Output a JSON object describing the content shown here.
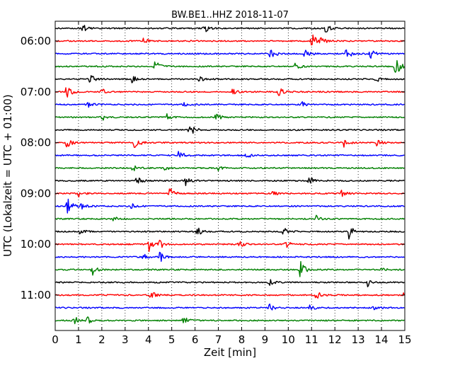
{
  "chart_data": {
    "type": "line",
    "title": "BW.BE1..HHZ 2018-11-07",
    "xlabel": "Zeit  [min]",
    "ylabel": "UTC (Lokalzeit = UTC + 01:00)",
    "xlim": [
      0,
      15
    ],
    "x_ticks": [
      "0",
      "1",
      "2",
      "3",
      "4",
      "5",
      "6",
      "7",
      "8",
      "9",
      "10",
      "11",
      "12",
      "13",
      "14",
      "15"
    ],
    "y_ticks": [
      "06:00",
      "07:00",
      "08:00",
      "09:00",
      "10:00",
      "11:00"
    ],
    "row_start": "05:45",
    "row_interval_min": 15,
    "grid": "vertical-dotted",
    "color_cycle": [
      "#000000",
      "#ff0000",
      "#0000ff",
      "#008000"
    ],
    "series": [
      {
        "time": "05:45",
        "color": "black",
        "events": [
          [
            1.2,
            0.5
          ],
          [
            6.4,
            0.6
          ],
          [
            11.6,
            0.6
          ]
        ]
      },
      {
        "time": "06:00",
        "color": "red",
        "events": [
          [
            3.8,
            0.4
          ],
          [
            11.0,
            1.2
          ],
          [
            11.4,
            0.7
          ]
        ]
      },
      {
        "time": "06:15",
        "color": "blue",
        "events": [
          [
            9.2,
            1.1
          ],
          [
            10.7,
            0.9
          ],
          [
            12.5,
            1.0
          ],
          [
            13.5,
            0.8
          ]
        ]
      },
      {
        "time": "06:30",
        "color": "green",
        "events": [
          [
            4.3,
            0.9
          ],
          [
            10.3,
            0.5
          ],
          [
            14.6,
            1.6
          ]
        ]
      },
      {
        "time": "06:45",
        "color": "black",
        "events": [
          [
            1.5,
            0.7
          ],
          [
            3.3,
            0.5
          ],
          [
            6.2,
            0.4
          ],
          [
            13.7,
            0.6
          ]
        ]
      },
      {
        "time": "07:00",
        "color": "red",
        "events": [
          [
            0.5,
            1.3
          ],
          [
            2.0,
            0.5
          ],
          [
            7.6,
            0.5
          ],
          [
            9.6,
            0.6
          ]
        ]
      },
      {
        "time": "07:15",
        "color": "blue",
        "events": [
          [
            1.4,
            0.4
          ],
          [
            5.5,
            0.4
          ],
          [
            10.6,
            0.3
          ]
        ]
      },
      {
        "time": "07:30",
        "color": "green",
        "events": [
          [
            2.0,
            0.5
          ],
          [
            4.8,
            0.4
          ],
          [
            6.9,
            0.6
          ]
        ]
      },
      {
        "time": "07:45",
        "color": "black",
        "events": [
          [
            5.7,
            0.6
          ],
          [
            5.9,
            0.5
          ]
        ]
      },
      {
        "time": "08:00",
        "color": "red",
        "events": [
          [
            0.5,
            0.8
          ],
          [
            3.4,
            1.2
          ],
          [
            12.4,
            0.7
          ],
          [
            13.8,
            0.5
          ]
        ]
      },
      {
        "time": "08:15",
        "color": "blue",
        "events": [
          [
            5.3,
            0.8
          ],
          [
            8.2,
            0.5
          ]
        ]
      },
      {
        "time": "08:30",
        "color": "green",
        "events": [
          [
            3.3,
            0.6
          ],
          [
            4.7,
            0.4
          ],
          [
            7.0,
            0.3
          ]
        ]
      },
      {
        "time": "08:45",
        "color": "black",
        "events": [
          [
            3.5,
            0.7
          ],
          [
            5.6,
            0.6
          ],
          [
            10.9,
            0.6
          ]
        ]
      },
      {
        "time": "09:00",
        "color": "red",
        "events": [
          [
            1.0,
            0.5
          ],
          [
            4.9,
            0.9
          ],
          [
            9.3,
            0.4
          ],
          [
            12.3,
            0.5
          ]
        ]
      },
      {
        "time": "09:15",
        "color": "blue",
        "events": [
          [
            0.5,
            1.8
          ],
          [
            1.1,
            0.5
          ],
          [
            3.3,
            0.5
          ]
        ]
      },
      {
        "time": "09:30",
        "color": "green",
        "events": [
          [
            11.2,
            0.4
          ],
          [
            2.5,
            0.3
          ]
        ]
      },
      {
        "time": "09:45",
        "color": "black",
        "events": [
          [
            1.1,
            0.6
          ],
          [
            6.1,
            0.7
          ],
          [
            9.8,
            0.5
          ],
          [
            12.6,
            1.0
          ]
        ]
      },
      {
        "time": "10:00",
        "color": "red",
        "events": [
          [
            4.0,
            1.1
          ],
          [
            4.5,
            0.6
          ],
          [
            7.9,
            0.6
          ],
          [
            9.9,
            0.5
          ]
        ]
      },
      {
        "time": "10:15",
        "color": "blue",
        "events": [
          [
            3.8,
            0.4
          ],
          [
            4.5,
            0.7
          ]
        ]
      },
      {
        "time": "10:30",
        "color": "green",
        "events": [
          [
            1.6,
            0.7
          ],
          [
            10.5,
            1.5
          ],
          [
            14.0,
            0.3
          ]
        ]
      },
      {
        "time": "10:45",
        "color": "black",
        "events": [
          [
            9.2,
            0.5
          ],
          [
            13.4,
            0.5
          ]
        ]
      },
      {
        "time": "11:00",
        "color": "red",
        "events": [
          [
            4.1,
            0.6
          ],
          [
            11.2,
            0.6
          ],
          [
            14.9,
            0.4
          ]
        ]
      },
      {
        "time": "11:15",
        "color": "blue",
        "events": [
          [
            9.2,
            0.5
          ],
          [
            10.9,
            0.5
          ],
          [
            13.6,
            0.4
          ]
        ]
      },
      {
        "time": "11:30",
        "color": "green",
        "events": [
          [
            0.8,
            0.7
          ],
          [
            1.4,
            0.5
          ],
          [
            5.5,
            0.7
          ]
        ]
      }
    ]
  }
}
